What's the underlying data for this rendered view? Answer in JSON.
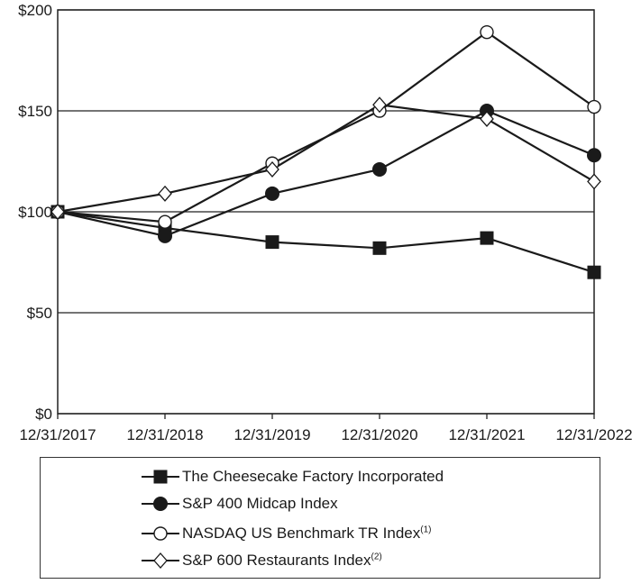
{
  "chart_data": {
    "type": "line",
    "categories": [
      "12/31/2017",
      "12/31/2018",
      "12/31/2019",
      "12/31/2020",
      "12/31/2021",
      "12/31/2022"
    ],
    "y_ticks": [
      "$0",
      "$50",
      "$100",
      "$150",
      "$200"
    ],
    "ylim": [
      0,
      200
    ],
    "grid": "horizontal",
    "legend_position": "bottom",
    "series": [
      {
        "name": "The Cheesecake Factory Incorporated",
        "marker": "filled-square",
        "values": [
          100,
          92,
          85,
          82,
          87,
          70
        ]
      },
      {
        "name": "S&P 400 Midcap Index",
        "marker": "filled-circle",
        "values": [
          100,
          88,
          109,
          121,
          150,
          128
        ]
      },
      {
        "name": "NASDAQ US Benchmark TR Index",
        "name_superscript": "(1)",
        "marker": "open-circle",
        "values": [
          100,
          95,
          124,
          150,
          189,
          152
        ]
      },
      {
        "name": "S&P 600 Restaurants Index",
        "name_superscript": "(2)",
        "marker": "open-diamond",
        "values": [
          100,
          109,
          121,
          153,
          146,
          115
        ]
      }
    ]
  }
}
